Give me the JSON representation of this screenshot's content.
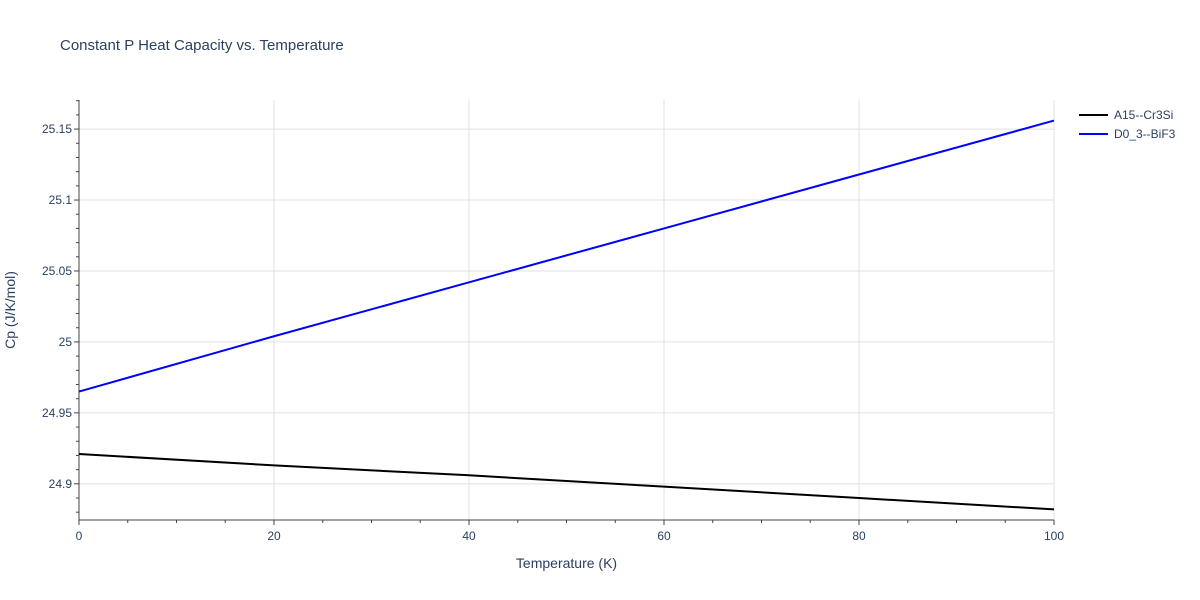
{
  "chart_data": {
    "type": "line",
    "title": "Constant P Heat Capacity vs. Temperature",
    "xlabel": "Temperature (K)",
    "ylabel": "Cp (J/K/mol)",
    "xlim": [
      0,
      100
    ],
    "ylim": [
      24.8745,
      25.1705
    ],
    "x_ticks": [
      0,
      20,
      40,
      60,
      80,
      100
    ],
    "y_ticks": [
      24.9,
      24.95,
      25,
      25.05,
      25.1,
      25.15
    ],
    "x_tick_labels": [
      "0",
      "20",
      "40",
      "60",
      "80",
      "100"
    ],
    "y_tick_labels": [
      "24.9",
      "24.95",
      "25",
      "25.05",
      "25.1",
      "25.15"
    ],
    "grid": true,
    "legend_position": "top-right",
    "series": [
      {
        "name": "A15--Cr3Si",
        "color": "#000000",
        "x": [
          0,
          20,
          40,
          60,
          80,
          100
        ],
        "y": [
          24.921,
          24.913,
          24.906,
          24.898,
          24.89,
          24.882
        ]
      },
      {
        "name": "D0_3--BiF3",
        "color": "#0000ff",
        "x": [
          0,
          20,
          40,
          60,
          80,
          100
        ],
        "y": [
          24.965,
          25.004,
          25.042,
          25.08,
          25.118,
          25.156
        ]
      }
    ]
  }
}
